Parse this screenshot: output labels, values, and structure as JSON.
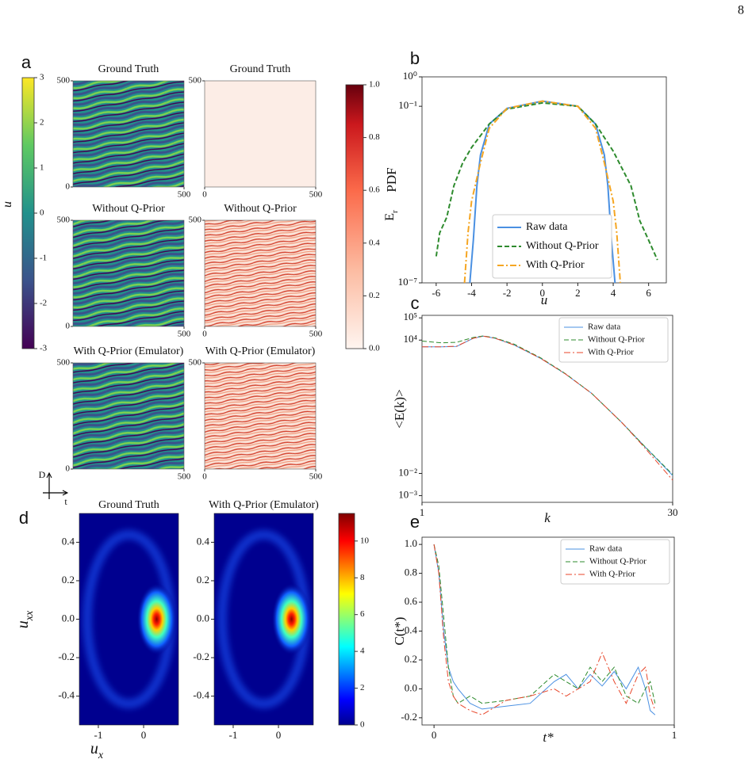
{
  "page_number": "8",
  "chart_data": [
    {
      "type": "heatmap",
      "panel_label": "a",
      "axis_indicator": {
        "vertical": "D",
        "horizontal": "t"
      },
      "colorbars": [
        {
          "label": "u",
          "colormap": "viridis",
          "lim": [
            -3,
            3
          ],
          "ticks": [
            -3,
            -2,
            -1,
            0,
            1,
            2,
            3
          ]
        },
        {
          "label": "E",
          "label_subscript": "r",
          "colormap": "reds",
          "lim": [
            0,
            1
          ],
          "ticks": [
            {
              "value": 0,
              "label": "0.0"
            },
            {
              "value": 0.2,
              "label": "0.2"
            },
            {
              "value": 0.4,
              "label": "0.4"
            },
            {
              "value": 0.6,
              "label": "0.6"
            },
            {
              "value": 0.8,
              "label": "0.8"
            },
            {
              "value": 1,
              "label": "1.0"
            }
          ]
        }
      ],
      "xlim": [
        0,
        500
      ],
      "ylim": [
        0,
        500
      ],
      "plots": [
        {
          "title": "Ground Truth",
          "colormap": "viridis",
          "xticks": [
            500
          ],
          "yticks": [
            0,
            500
          ]
        },
        {
          "title": "Ground Truth",
          "colormap": "reds",
          "uniform": true,
          "xticks": [
            0,
            500
          ],
          "yticks": [
            500
          ]
        },
        {
          "title": "Without Q-Prior",
          "colormap": "viridis",
          "xticks": [
            500
          ],
          "yticks": [
            0,
            500
          ]
        },
        {
          "title": "Without Q-Prior",
          "colormap": "reds",
          "xticks": [
            0,
            500
          ],
          "yticks": [
            500
          ]
        },
        {
          "title": "With Q-Prior (Emulator)",
          "colormap": "viridis",
          "xticks": [
            500
          ],
          "yticks": [
            0,
            500
          ]
        },
        {
          "title": "With Q-Prior (Emulator)",
          "colormap": "reds",
          "xticks": [
            0,
            500
          ],
          "yticks": [
            500
          ]
        }
      ]
    },
    {
      "type": "line",
      "panel_label": "b",
      "xlabel": "u",
      "ylabel": "PDF",
      "xlim": [
        -6.8,
        7
      ],
      "xticks": [
        -6,
        -4,
        -2,
        0,
        2,
        4,
        6
      ],
      "yscale": "log",
      "ylim": [
        1e-07,
        1
      ],
      "yticks": [
        {
          "value": 1,
          "label": "10⁰"
        },
        {
          "value": 0.1,
          "label": "10⁻¹"
        },
        {
          "value": 1e-07,
          "label": "10⁻⁷"
        }
      ],
      "legend": "lower center",
      "series": [
        {
          "name": "Raw data",
          "color": "#4a90e2",
          "linestyle": "solid",
          "linewidth": 2,
          "x": [
            -4.1,
            -3.9,
            -3.7,
            -3.5,
            -3,
            -2,
            0,
            2,
            3,
            3.5,
            3.7,
            3.9,
            4.1
          ],
          "values": [
            1e-07,
            2.8e-06,
            0.0002,
            0.0022,
            0.025,
            0.085,
            0.15,
            0.1,
            0.025,
            0.0022,
            0.0002,
            2.8e-06,
            1e-07
          ]
        },
        {
          "name": "Without Q-Prior",
          "color": "#2e8b2e",
          "linestyle": "dashed",
          "linewidth": 2,
          "x": [
            -6,
            -5.8,
            -5.4,
            -5,
            -4.5,
            -4,
            -3,
            -2,
            0,
            2,
            3,
            4,
            5,
            5.5,
            6,
            6.5
          ],
          "values": [
            8e-07,
            5e-06,
            1.7e-05,
            0.0002,
            0.0012,
            0.004,
            0.025,
            0.08,
            0.13,
            0.1,
            0.025,
            0.003,
            0.0002,
            1.3e-05,
            2.8e-06,
            6e-07
          ]
        },
        {
          "name": "With Q-Prior",
          "color": "#f5a623",
          "linestyle": "dashdot",
          "linewidth": 2,
          "x": [
            -4.4,
            -4.2,
            -4,
            -3.5,
            -3,
            -2,
            0,
            2,
            3,
            3.5,
            4,
            4.2,
            4.4
          ],
          "values": [
            1e-07,
            5e-06,
            6e-05,
            0.0012,
            0.018,
            0.085,
            0.15,
            0.1,
            0.018,
            0.0012,
            6e-05,
            5e-06,
            1e-07
          ]
        }
      ]
    },
    {
      "type": "line",
      "panel_label": "c",
      "xlabel": "k",
      "ylabel": "<E(k)>",
      "xscale": "log",
      "xlim": [
        1,
        30
      ],
      "xticks": [
        1,
        30
      ],
      "yscale": "log",
      "ylim": [
        0.0005,
        130000
      ],
      "yticks": [
        {
          "value": 100000,
          "label": "10⁵"
        },
        {
          "value": 10000,
          "label": "10⁴"
        },
        {
          "value": 0.01,
          "label": "10⁻²"
        },
        {
          "value": 0.001,
          "label": "10⁻³"
        }
      ],
      "legend": "upper right",
      "series": [
        {
          "name": "Raw data",
          "color": "#4a90e2",
          "linestyle": "solid",
          "linewidth": 1,
          "x": [
            1,
            1.3,
            1.6,
            2,
            2.3,
            2.7,
            3.5,
            5,
            7,
            10,
            15,
            20,
            30
          ],
          "values": [
            5000,
            5000,
            5200,
            12000,
            15000,
            12000,
            6000,
            1500,
            300,
            40,
            2,
            0.2,
            0.008
          ]
        },
        {
          "name": "Without Q-Prior",
          "color": "#2e8b2e",
          "linestyle": "dashed",
          "linewidth": 1,
          "x": [
            1,
            1.3,
            1.6,
            2,
            2.3,
            2.7,
            3.5,
            5,
            7,
            10,
            15,
            20,
            30
          ],
          "values": [
            9000,
            7500,
            8000,
            13000,
            15500,
            12500,
            6500,
            1600,
            310,
            40,
            2,
            0.2,
            0.009
          ]
        },
        {
          "name": "With Q-Prior",
          "color": "#e8462a",
          "linestyle": "dashdot",
          "linewidth": 1,
          "x": [
            1,
            1.3,
            1.6,
            2,
            2.3,
            2.7,
            3.5,
            5,
            7,
            10,
            15,
            20,
            30
          ],
          "values": [
            5000,
            5000,
            5300,
            12000,
            15000,
            12000,
            6000,
            1500,
            300,
            40,
            2,
            0.18,
            0.005
          ]
        }
      ]
    },
    {
      "type": "density",
      "panel_label": "d",
      "xlabel": {
        "text": "u",
        "subscript": "x"
      },
      "ylabel": {
        "text": "u",
        "subscript": "xx"
      },
      "xlim": [
        -1.42,
        0.77
      ],
      "xticks": [
        -1,
        0
      ],
      "ylim": [
        -0.55,
        0.55
      ],
      "yticks": [
        {
          "value": -0.4,
          "label": "-0.4"
        },
        {
          "value": -0.2,
          "label": "-0.2"
        },
        {
          "value": 0,
          "label": "0.0"
        },
        {
          "value": 0.2,
          "label": "0.2"
        },
        {
          "value": 0.4,
          "label": "0.4"
        }
      ],
      "plots": [
        {
          "title": "Ground Truth"
        },
        {
          "title": "With Q-Prior (Emulator)"
        }
      ],
      "colorbar": {
        "colormap": "jet",
        "lim": [
          0,
          11.5
        ],
        "ticks": [
          0,
          2,
          4,
          6,
          8,
          10
        ]
      }
    },
    {
      "type": "line",
      "panel_label": "e",
      "xlabel": "t*",
      "ylabel": "C(t*)",
      "xlim": [
        -0.05,
        1
      ],
      "xticks": [
        0,
        1
      ],
      "ylim": [
        -0.25,
        1.05
      ],
      "yticks": [
        {
          "value": -0.2,
          "label": "-0.2"
        },
        {
          "value": 0,
          "label": "0.0"
        },
        {
          "value": 0.2,
          "label": "0.2"
        },
        {
          "value": 0.4,
          "label": "0.4"
        },
        {
          "value": 0.6,
          "label": "0.6"
        },
        {
          "value": 0.8,
          "label": "0.8"
        },
        {
          "value": 1,
          "label": "1.0"
        }
      ],
      "legend": "upper right",
      "series": [
        {
          "name": "Raw data",
          "color": "#4a90e2",
          "linestyle": "solid",
          "linewidth": 1,
          "x": [
            0,
            0.02,
            0.04,
            0.06,
            0.08,
            0.1,
            0.15,
            0.2,
            0.3,
            0.4,
            0.5,
            0.55,
            0.6,
            0.65,
            0.7,
            0.75,
            0.8,
            0.85,
            0.88,
            0.9,
            0.92
          ],
          "values": [
            1,
            0.8,
            0.4,
            0.15,
            0.05,
            0,
            -0.1,
            -0.14,
            -0.12,
            -0.1,
            0.05,
            0.1,
            0,
            0.1,
            0.02,
            0.12,
            0,
            0.15,
            0,
            -0.15,
            -0.18
          ]
        },
        {
          "name": "Without Q-Prior",
          "color": "#2e8b2e",
          "linestyle": "dashed",
          "linewidth": 1,
          "x": [
            0,
            0.02,
            0.04,
            0.06,
            0.08,
            0.1,
            0.15,
            0.2,
            0.3,
            0.4,
            0.5,
            0.55,
            0.6,
            0.65,
            0.7,
            0.75,
            0.8,
            0.85,
            0.88,
            0.9,
            0.92
          ],
          "values": [
            1,
            0.85,
            0.5,
            0.15,
            -0.05,
            -0.1,
            -0.05,
            -0.1,
            -0.08,
            -0.05,
            0.1,
            0.05,
            0,
            0.15,
            0.05,
            0.15,
            -0.05,
            -0.1,
            0,
            0.05,
            -0.1
          ]
        },
        {
          "name": "With Q-Prior",
          "color": "#e8462a",
          "linestyle": "dashdot",
          "linewidth": 1,
          "x": [
            0,
            0.02,
            0.04,
            0.06,
            0.08,
            0.1,
            0.15,
            0.2,
            0.3,
            0.4,
            0.5,
            0.55,
            0.6,
            0.65,
            0.7,
            0.75,
            0.8,
            0.85,
            0.88,
            0.9,
            0.92
          ],
          "values": [
            1,
            0.8,
            0.35,
            0.05,
            -0.05,
            -0.1,
            -0.15,
            -0.18,
            -0.08,
            -0.05,
            0,
            -0.05,
            0,
            0.05,
            0.25,
            0.05,
            -0.1,
            0.1,
            0.15,
            -0.05,
            -0.15
          ]
        }
      ]
    }
  ]
}
